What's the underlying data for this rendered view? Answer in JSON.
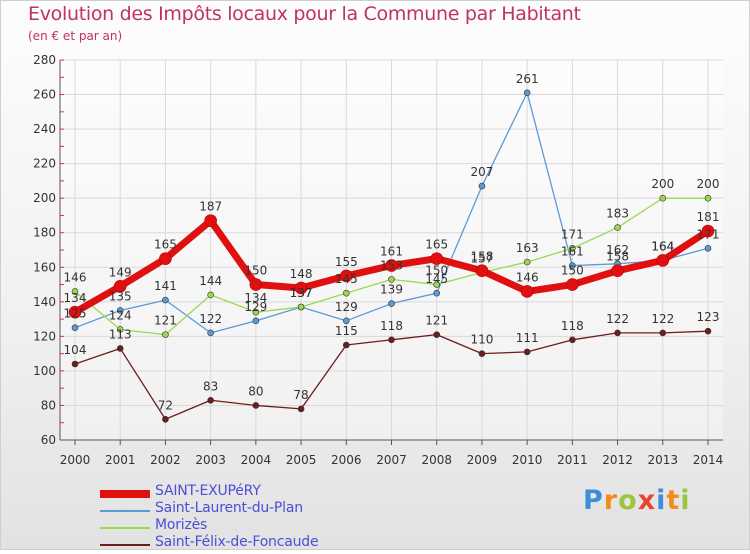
{
  "title": "Evolution des Impôts locaux pour la Commune par Habitant",
  "subtitle": "(en € et par an)",
  "brand": "Proxiti",
  "chart_data": {
    "type": "line",
    "title": "Evolution des Impôts locaux pour la Commune par Habitant",
    "ylabel": "(en € et par an)",
    "xlabel": "",
    "ylim": [
      60,
      280
    ],
    "yticks": [
      60,
      80,
      100,
      120,
      140,
      160,
      180,
      200,
      220,
      240,
      260,
      280
    ],
    "x": [
      "2000",
      "2001",
      "2002",
      "2003",
      "2004",
      "2005",
      "2006",
      "2007",
      "2008",
      "2009",
      "2010",
      "2011",
      "2012",
      "2013",
      "2014"
    ],
    "grid": true,
    "legend_position": "bottom-left",
    "series": [
      {
        "name": "SAINT-EXUPéRY",
        "color": "#e01010",
        "values": [
          134,
          149,
          165,
          187,
          150,
          148,
          155,
          161,
          165,
          158,
          146,
          150,
          158,
          164,
          181
        ]
      },
      {
        "name": "Saint-Laurent-du-Plan",
        "color": "#5b9bd5",
        "values": [
          125,
          135,
          141,
          122,
          129,
          137,
          129,
          139,
          145,
          207,
          261,
          161,
          162,
          164,
          171
        ]
      },
      {
        "name": "Morizès",
        "color": "#9ad94e",
        "values": [
          146,
          124,
          121,
          144,
          134,
          137,
          145,
          153,
          150,
          157,
          163,
          171,
          183,
          200,
          200
        ]
      },
      {
        "name": "Saint-Félix-de-Foncaude",
        "color": "#6e1c1c",
        "values": [
          104,
          113,
          72,
          83,
          80,
          78,
          115,
          118,
          121,
          110,
          111,
          118,
          122,
          122,
          123
        ]
      }
    ]
  }
}
